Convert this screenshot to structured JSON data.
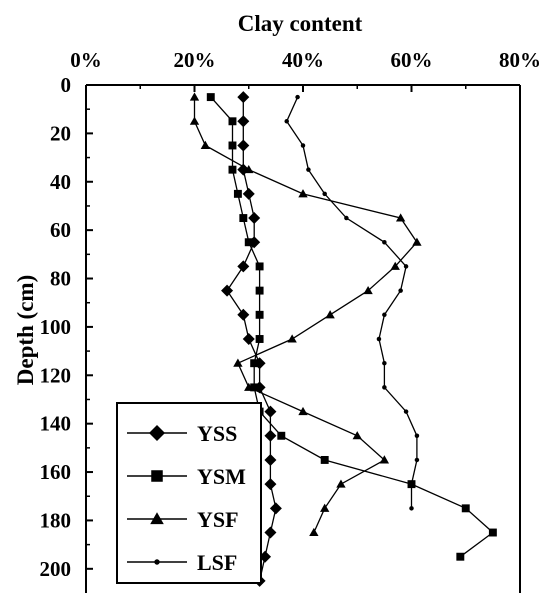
{
  "chart_data": {
    "type": "line",
    "xlabel": "Clay content",
    "ylabel": "Depth (cm)",
    "xlim": [
      0,
      80
    ],
    "ylim": [
      0,
      210
    ],
    "x_ticks": [
      "0%",
      "20%",
      "40%",
      "60%",
      "80%"
    ],
    "x_tick_values": [
      0,
      20,
      40,
      60,
      80
    ],
    "y_ticks": [
      "0",
      "20",
      "40",
      "60",
      "80",
      "100",
      "120",
      "140",
      "160",
      "180",
      "200"
    ],
    "y_tick_values": [
      0,
      20,
      40,
      60,
      80,
      100,
      120,
      140,
      160,
      180,
      200
    ],
    "x_axis_position": "top",
    "y_axis_inverted": true,
    "grid": false,
    "legend_position": "bottom-left",
    "series": [
      {
        "name": "YSS",
        "marker": "diamond",
        "points": [
          [
            29,
            5
          ],
          [
            29,
            15
          ],
          [
            29,
            25
          ],
          [
            29,
            35
          ],
          [
            30,
            45
          ],
          [
            31,
            55
          ],
          [
            31,
            65
          ],
          [
            29,
            75
          ],
          [
            26,
            85
          ],
          [
            29,
            95
          ],
          [
            30,
            105
          ],
          [
            32,
            115
          ],
          [
            32,
            125
          ],
          [
            34,
            135
          ],
          [
            34,
            145
          ],
          [
            34,
            155
          ],
          [
            34,
            165
          ],
          [
            35,
            175
          ],
          [
            34,
            185
          ],
          [
            33,
            195
          ],
          [
            32,
            205
          ]
        ]
      },
      {
        "name": "YSM",
        "marker": "square",
        "points": [
          [
            23,
            5
          ],
          [
            27,
            15
          ],
          [
            27,
            25
          ],
          [
            27,
            35
          ],
          [
            28,
            45
          ],
          [
            29,
            55
          ],
          [
            30,
            65
          ],
          [
            32,
            75
          ],
          [
            32,
            85
          ],
          [
            32,
            95
          ],
          [
            32,
            105
          ],
          [
            31,
            115
          ],
          [
            31,
            125
          ],
          [
            32,
            135
          ],
          [
            36,
            145
          ],
          [
            44,
            155
          ],
          [
            60,
            165
          ],
          [
            70,
            175
          ],
          [
            75,
            185
          ],
          [
            69,
            195
          ]
        ]
      },
      {
        "name": "YSF",
        "marker": "triangle",
        "points": [
          [
            20,
            5
          ],
          [
            20,
            15
          ],
          [
            22,
            25
          ],
          [
            30,
            35
          ],
          [
            40,
            45
          ],
          [
            58,
            55
          ],
          [
            61,
            65
          ],
          [
            57,
            75
          ],
          [
            52,
            85
          ],
          [
            45,
            95
          ],
          [
            38,
            105
          ],
          [
            28,
            115
          ],
          [
            30,
            125
          ],
          [
            40,
            135
          ],
          [
            50,
            145
          ],
          [
            55,
            155
          ],
          [
            47,
            165
          ],
          [
            44,
            175
          ],
          [
            42,
            185
          ]
        ]
      },
      {
        "name": "LSF",
        "marker": "dot",
        "points": [
          [
            39,
            5
          ],
          [
            37,
            15
          ],
          [
            40,
            25
          ],
          [
            41,
            35
          ],
          [
            44,
            45
          ],
          [
            48,
            55
          ],
          [
            55,
            65
          ],
          [
            59,
            75
          ],
          [
            58,
            85
          ],
          [
            55,
            95
          ],
          [
            54,
            105
          ],
          [
            55,
            115
          ],
          [
            55,
            125
          ],
          [
            59,
            135
          ],
          [
            61,
            145
          ],
          [
            61,
            155
          ],
          [
            60,
            165
          ],
          [
            60,
            175
          ]
        ]
      }
    ]
  }
}
